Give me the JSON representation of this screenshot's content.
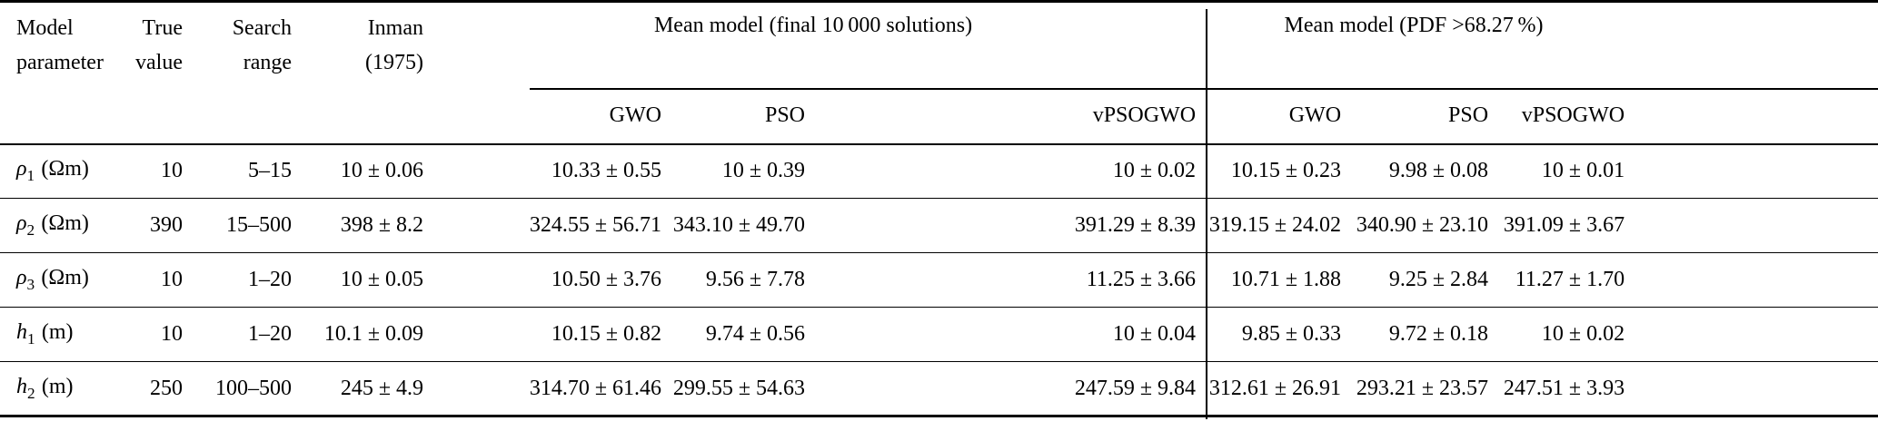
{
  "colors": {
    "text": "#000000",
    "background": "#ffffff",
    "rule": "#000000"
  },
  "table": {
    "header": {
      "param": [
        "Model",
        "parameter"
      ],
      "true_value": [
        "True",
        "value"
      ],
      "search_range": [
        "Search",
        "range"
      ],
      "reference": [
        "Inman",
        "(1975)"
      ],
      "groups": [
        {
          "label": "Mean model (final 10 000 solutions)",
          "subcolumns": [
            "GWO",
            "PSO",
            "vPSOGWO"
          ]
        },
        {
          "label": "Mean model (PDF >68.27 %)",
          "subcolumns": [
            "GWO",
            "PSO",
            "vPSOGWO"
          ]
        }
      ]
    },
    "rows": [
      {
        "sym": "ρ",
        "sub": "1",
        "unit": "(Ωm)",
        "true_value": "10",
        "search_range": "5–15",
        "inman": "10 ± 0.06",
        "g1": [
          "10.33 ± 0.55",
          "10 ± 0.39",
          "10 ± 0.02"
        ],
        "g2": [
          "10.15 ± 0.23",
          "9.98 ± 0.08",
          "10 ± 0.01"
        ]
      },
      {
        "sym": "ρ",
        "sub": "2",
        "unit": "(Ωm)",
        "true_value": "390",
        "search_range": "15–500",
        "inman": "398 ± 8.2",
        "g1": [
          "324.55 ± 56.71",
          "343.10 ± 49.70",
          "391.29 ± 8.39"
        ],
        "g2": [
          "319.15 ± 24.02",
          "340.90 ± 23.10",
          "391.09 ± 3.67"
        ]
      },
      {
        "sym": "ρ",
        "sub": "3",
        "unit": "(Ωm)",
        "true_value": "10",
        "search_range": "1–20",
        "inman": "10 ± 0.05",
        "g1": [
          "10.50 ± 3.76",
          "9.56 ± 7.78",
          "11.25 ± 3.66"
        ],
        "g2": [
          "10.71 ± 1.88",
          "9.25 ± 2.84",
          "11.27 ± 1.70"
        ]
      },
      {
        "sym": "h",
        "sub": "1",
        "unit": "(m)",
        "true_value": "10",
        "search_range": "1–20",
        "inman": "10.1 ± 0.09",
        "g1": [
          "10.15 ± 0.82",
          "9.74 ± 0.56",
          "10 ± 0.04"
        ],
        "g2": [
          "9.85 ± 0.33",
          "9.72 ± 0.18",
          "10 ± 0.02"
        ]
      },
      {
        "sym": "h",
        "sub": "2",
        "unit": "(m)",
        "true_value": "250",
        "search_range": "100–500",
        "inman": "245 ± 4.9",
        "g1": [
          "314.70 ± 61.46",
          "299.55 ± 54.63",
          "247.59 ± 9.84"
        ],
        "g2": [
          "312.61 ± 26.91",
          "293.21 ± 23.57",
          "247.51 ± 3.93"
        ]
      }
    ]
  }
}
